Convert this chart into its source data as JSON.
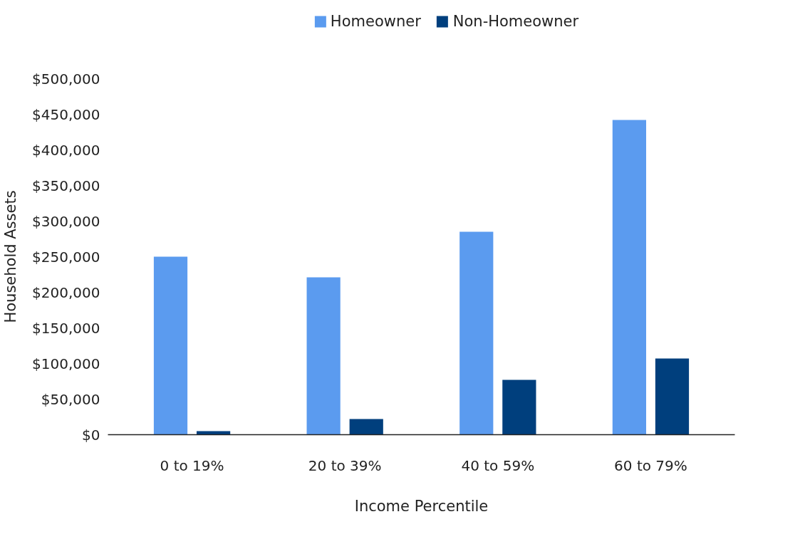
{
  "chart_data": {
    "type": "bar",
    "xlabel": "Income Percentile",
    "ylabel": "Household Assets",
    "categories": [
      "0 to 19%",
      "20 to 39%",
      "40 to 59%",
      "60 to 79%"
    ],
    "series": [
      {
        "name": "Homeowner",
        "color": "#5b9bef",
        "values": [
          250000,
          221000,
          285000,
          442000
        ]
      },
      {
        "name": "Non-Homeowner",
        "color": "#003f7d",
        "values": [
          5000,
          22000,
          77000,
          107000
        ]
      }
    ],
    "ylim": [
      0,
      500000
    ],
    "yticks": [
      {
        "value": 0,
        "label": "$0"
      },
      {
        "value": 50000,
        "label": "$50,000"
      },
      {
        "value": 100000,
        "label": "$100,000"
      },
      {
        "value": 150000,
        "label": "$150,000"
      },
      {
        "value": 200000,
        "label": "$200,000"
      },
      {
        "value": 250000,
        "label": "$250,000"
      },
      {
        "value": 300000,
        "label": "$300,000"
      },
      {
        "value": 350000,
        "label": "$350,000"
      },
      {
        "value": 400000,
        "label": "$400,000"
      },
      {
        "value": 450000,
        "label": "$450,000"
      },
      {
        "value": 500000,
        "label": "$500,000"
      }
    ],
    "grid": false,
    "legend": "top"
  }
}
